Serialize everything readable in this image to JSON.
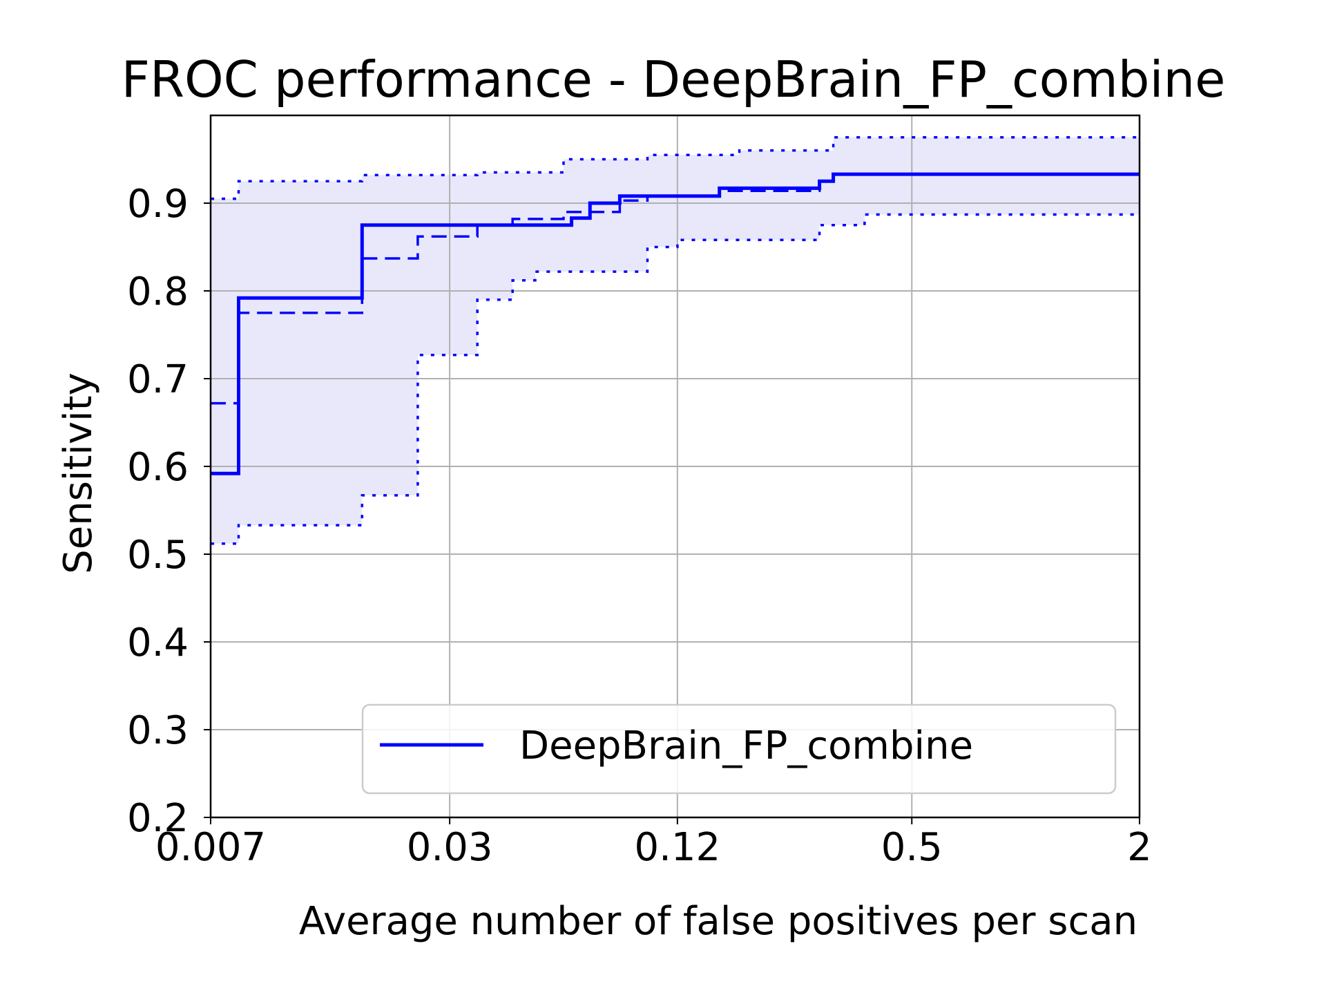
{
  "chart_data": {
    "type": "line",
    "title": "FROC performance - DeepBrain_FP_combine",
    "xlabel": "Average number of false positives per scan",
    "ylabel": "Sensitivity",
    "x_scale": "log2",
    "xlim": [
      0.007,
      2
    ],
    "ylim": [
      0.2,
      1.0
    ],
    "x_ticks": [
      0.007,
      0.03,
      0.12,
      0.5,
      2
    ],
    "x_tick_labels": [
      "0.007",
      "0.03",
      "0.12",
      "0.5",
      "2"
    ],
    "y_ticks": [
      0.2,
      0.3,
      0.4,
      0.5,
      0.6,
      0.7,
      0.8,
      0.9
    ],
    "y_tick_labels": [
      "0.2",
      "0.3",
      "0.4",
      "0.5",
      "0.6",
      "0.7",
      "0.8",
      "0.9"
    ],
    "grid": true,
    "legend": {
      "position": "lower right",
      "entries": [
        "DeepBrain_FP_combine"
      ]
    },
    "colors": {
      "series": "#0000ff",
      "band": "#e8e8fa",
      "grid": "#b0b0b0"
    },
    "series": [
      {
        "name": "DeepBrain_FP_combine",
        "style": "solid",
        "x": [
          0.007,
          0.0083,
          0.0083,
          0.0176,
          0.0176,
          0.063,
          0.063,
          0.0705,
          0.0705,
          0.0845,
          0.0845,
          0.155,
          0.155,
          0.285,
          0.285,
          0.31,
          0.31,
          2
        ],
        "y": [
          0.592,
          0.592,
          0.792,
          0.792,
          0.875,
          0.875,
          0.883,
          0.883,
          0.9,
          0.9,
          0.908,
          0.908,
          0.917,
          0.917,
          0.925,
          0.925,
          0.933,
          0.933
        ]
      },
      {
        "name": "",
        "style": "dashed",
        "x": [
          0.007,
          0.0083,
          0.0083,
          0.0176,
          0.0176,
          0.0247,
          0.0247,
          0.0355,
          0.0355,
          0.044,
          0.044,
          0.06,
          0.06,
          0.0845,
          0.0845,
          0.1,
          0.1,
          0.155,
          0.155,
          0.285,
          0.285,
          0.31,
          0.31,
          2
        ],
        "y": [
          0.672,
          0.672,
          0.775,
          0.775,
          0.837,
          0.837,
          0.862,
          0.862,
          0.875,
          0.875,
          0.882,
          0.882,
          0.89,
          0.89,
          0.903,
          0.903,
          0.908,
          0.908,
          0.914,
          0.914,
          0.925,
          0.925,
          0.933,
          0.933
        ]
      },
      {
        "name": "",
        "style": "dotted",
        "x": [
          0.007,
          0.0083,
          0.0083,
          0.0176,
          0.0176,
          0.0247,
          0.0247,
          0.0355,
          0.0355,
          0.044,
          0.044,
          0.0505,
          0.0505,
          0.1,
          0.1,
          0.12,
          0.12,
          0.285,
          0.285,
          0.375,
          0.375,
          2
        ],
        "y": [
          0.512,
          0.512,
          0.533,
          0.533,
          0.567,
          0.567,
          0.727,
          0.727,
          0.79,
          0.79,
          0.812,
          0.812,
          0.822,
          0.822,
          0.85,
          0.85,
          0.858,
          0.858,
          0.875,
          0.875,
          0.887,
          0.887
        ]
      },
      {
        "name": "",
        "style": "dotted",
        "x": [
          0.007,
          0.0083,
          0.0083,
          0.0176,
          0.0176,
          0.0355,
          0.0355,
          0.06,
          0.06,
          0.1,
          0.1,
          0.175,
          0.175,
          0.31,
          0.31,
          2
        ],
        "y": [
          0.905,
          0.905,
          0.925,
          0.925,
          0.932,
          0.932,
          0.935,
          0.935,
          0.95,
          0.95,
          0.955,
          0.955,
          0.96,
          0.96,
          0.975,
          0.975
        ]
      }
    ]
  }
}
